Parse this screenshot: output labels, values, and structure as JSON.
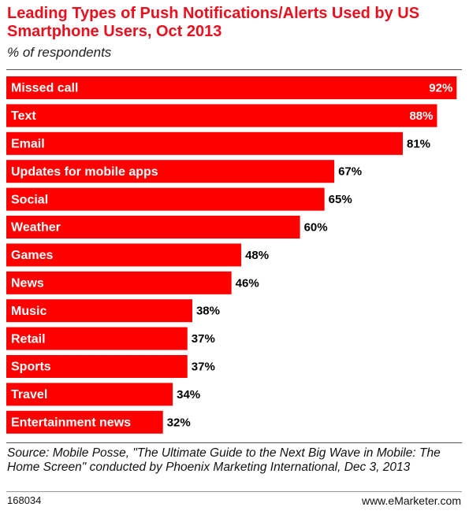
{
  "chart_data": {
    "type": "bar",
    "orientation": "horizontal",
    "title": "Leading Types of Push Notifications/Alerts Used by US Smartphone Users, Oct 2013",
    "subtitle": "% of respondents",
    "categories": [
      "Missed call",
      "Text",
      "Email",
      "Updates for mobile apps",
      "Social",
      "Weather",
      "Games",
      "News",
      "Music",
      "Retail",
      "Sports",
      "Travel",
      "Entertainment news"
    ],
    "values": [
      92,
      88,
      81,
      67,
      65,
      60,
      48,
      46,
      38,
      37,
      37,
      34,
      32
    ],
    "value_labels": [
      "92%",
      "88%",
      "81%",
      "67%",
      "65%",
      "60%",
      "48%",
      "46%",
      "38%",
      "37%",
      "37%",
      "34%",
      "32%"
    ],
    "color": "#ff0000",
    "source": "Source: Mobile Posse, \"The Ultimate Guide to the Next Big Wave in Mobile: The Home Screen\" conducted by Phoenix Marketing International, Dec 3, 2013",
    "chart_id": "168034",
    "credit": "www.eMarketer.com"
  }
}
